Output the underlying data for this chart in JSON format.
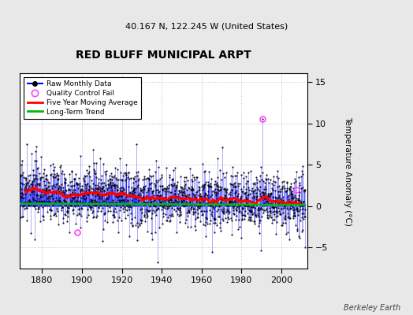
{
  "title": "RED BLUFF MUNICIPAL ARPT",
  "subtitle": "40.167 N, 122.245 W (United States)",
  "ylabel": "Temperature Anomaly (°C)",
  "credit": "Berkeley Earth",
  "year_start": 1869,
  "year_end": 2012,
  "ylim": [
    -7.5,
    16
  ],
  "yticks": [
    -5,
    0,
    5,
    10,
    15
  ],
  "xticks": [
    1880,
    1900,
    1920,
    1940,
    1960,
    1980,
    2000
  ],
  "xlim_left": 1869,
  "xlim_right": 2013,
  "raw_color": "#0000FF",
  "raw_alpha": 0.45,
  "moving_avg_color": "#FF0000",
  "trend_color": "#00BB00",
  "qc_fail_color": "#FF44FF",
  "background_color": "#E8E8E8",
  "plot_background": "#FFFFFF",
  "qc_fail_points": [
    [
      1897.5,
      -3.2
    ],
    [
      1990.5,
      10.5
    ],
    [
      2007.5,
      2.0
    ]
  ],
  "mean_anomaly": 1.0,
  "noise_std": 1.7,
  "trend_slope": -0.003,
  "moving_avg_window": 60,
  "seed": 17
}
